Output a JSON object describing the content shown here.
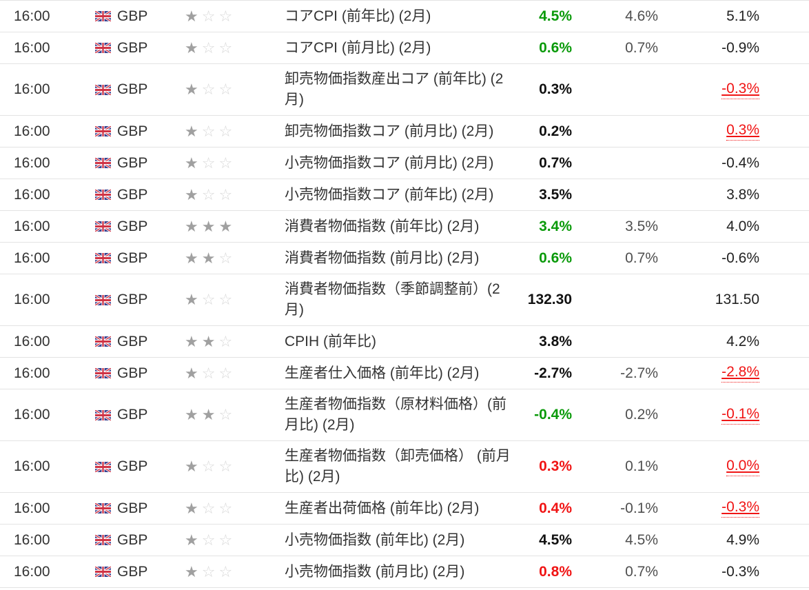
{
  "colors": {
    "actual_better_green": "#0a9a0a",
    "actual_worse_red": "#f01414",
    "revised_red": "#f01414",
    "text_dark": "#333333",
    "forecast_gray": "#4f4f4f",
    "row_border": "#e3e3e3",
    "star_filled": "#a0a0a0",
    "star_empty": "#d7d7d7"
  },
  "icons": {
    "flag": "uk-flag",
    "star_filled": "★",
    "star_empty": "☆"
  },
  "table": {
    "rows": [
      {
        "time": "16:00",
        "currency": "GBP",
        "stars": 1,
        "event": "コアCPI (前年比) (2月)",
        "actual": "4.5%",
        "actual_tone": "good",
        "forecast": "4.6%",
        "previous": "5.1%",
        "previous_revised": false,
        "tall": false
      },
      {
        "time": "16:00",
        "currency": "GBP",
        "stars": 1,
        "event": "コアCPI (前月比) (2月)",
        "actual": "0.6%",
        "actual_tone": "good",
        "forecast": "0.7%",
        "previous": "-0.9%",
        "previous_revised": false,
        "tall": false
      },
      {
        "time": "16:00",
        "currency": "GBP",
        "stars": 1,
        "event": "卸売物価指数産出コア (前年比) (2月)",
        "actual": "0.3%",
        "actual_tone": "neutral",
        "forecast": "",
        "previous": "-0.3%",
        "previous_revised": true,
        "tall": true
      },
      {
        "time": "16:00",
        "currency": "GBP",
        "stars": 1,
        "event": "卸売物価指数コア (前月比) (2月)",
        "actual": "0.2%",
        "actual_tone": "neutral",
        "forecast": "",
        "previous": "0.3%",
        "previous_revised": true,
        "tall": false
      },
      {
        "time": "16:00",
        "currency": "GBP",
        "stars": 1,
        "event": "小売物価指数コア (前月比) (2月)",
        "actual": "0.7%",
        "actual_tone": "neutral",
        "forecast": "",
        "previous": "-0.4%",
        "previous_revised": false,
        "tall": false
      },
      {
        "time": "16:00",
        "currency": "GBP",
        "stars": 1,
        "event": "小売物価指数コア (前年比) (2月)",
        "actual": "3.5%",
        "actual_tone": "neutral",
        "forecast": "",
        "previous": "3.8%",
        "previous_revised": false,
        "tall": false
      },
      {
        "time": "16:00",
        "currency": "GBP",
        "stars": 3,
        "event": "消費者物価指数 (前年比) (2月)",
        "actual": "3.4%",
        "actual_tone": "good",
        "forecast": "3.5%",
        "previous": "4.0%",
        "previous_revised": false,
        "tall": false
      },
      {
        "time": "16:00",
        "currency": "GBP",
        "stars": 2,
        "event": "消費者物価指数 (前月比) (2月)",
        "actual": "0.6%",
        "actual_tone": "good",
        "forecast": "0.7%",
        "previous": "-0.6%",
        "previous_revised": false,
        "tall": false
      },
      {
        "time": "16:00",
        "currency": "GBP",
        "stars": 1,
        "event": "消費者物価指数（季節調整前）(2月)",
        "actual": "132.30",
        "actual_tone": "neutral",
        "forecast": "",
        "previous": "131.50",
        "previous_revised": false,
        "tall": true
      },
      {
        "time": "16:00",
        "currency": "GBP",
        "stars": 2,
        "event": "CPIH (前年比)",
        "actual": "3.8%",
        "actual_tone": "neutral",
        "forecast": "",
        "previous": "4.2%",
        "previous_revised": false,
        "tall": false
      },
      {
        "time": "16:00",
        "currency": "GBP",
        "stars": 1,
        "event": "生産者仕入価格 (前年比) (2月)",
        "actual": "-2.7%",
        "actual_tone": "neutral",
        "forecast": "-2.7%",
        "previous": "-2.8%",
        "previous_revised": true,
        "tall": false
      },
      {
        "time": "16:00",
        "currency": "GBP",
        "stars": 2,
        "event": "生産者物価指数（原材料価格）(前月比) (2月)",
        "actual": "-0.4%",
        "actual_tone": "good",
        "forecast": "0.2%",
        "previous": "-0.1%",
        "previous_revised": true,
        "tall": true
      },
      {
        "time": "16:00",
        "currency": "GBP",
        "stars": 1,
        "event": "生産者物価指数（卸売価格） (前月比) (2月)",
        "actual": "0.3%",
        "actual_tone": "bad",
        "forecast": "0.1%",
        "previous": "0.0%",
        "previous_revised": true,
        "tall": true
      },
      {
        "time": "16:00",
        "currency": "GBP",
        "stars": 1,
        "event": "生産者出荷価格 (前年比) (2月)",
        "actual": "0.4%",
        "actual_tone": "bad",
        "forecast": "-0.1%",
        "previous": "-0.3%",
        "previous_revised": true,
        "tall": false
      },
      {
        "time": "16:00",
        "currency": "GBP",
        "stars": 1,
        "event": "小売物価指数 (前年比) (2月)",
        "actual": "4.5%",
        "actual_tone": "neutral",
        "forecast": "4.5%",
        "previous": "4.9%",
        "previous_revised": false,
        "tall": false
      },
      {
        "time": "16:00",
        "currency": "GBP",
        "stars": 1,
        "event": "小売物価指数 (前月比) (2月)",
        "actual": "0.8%",
        "actual_tone": "bad",
        "forecast": "0.7%",
        "previous": "-0.3%",
        "previous_revised": false,
        "tall": false
      }
    ]
  }
}
